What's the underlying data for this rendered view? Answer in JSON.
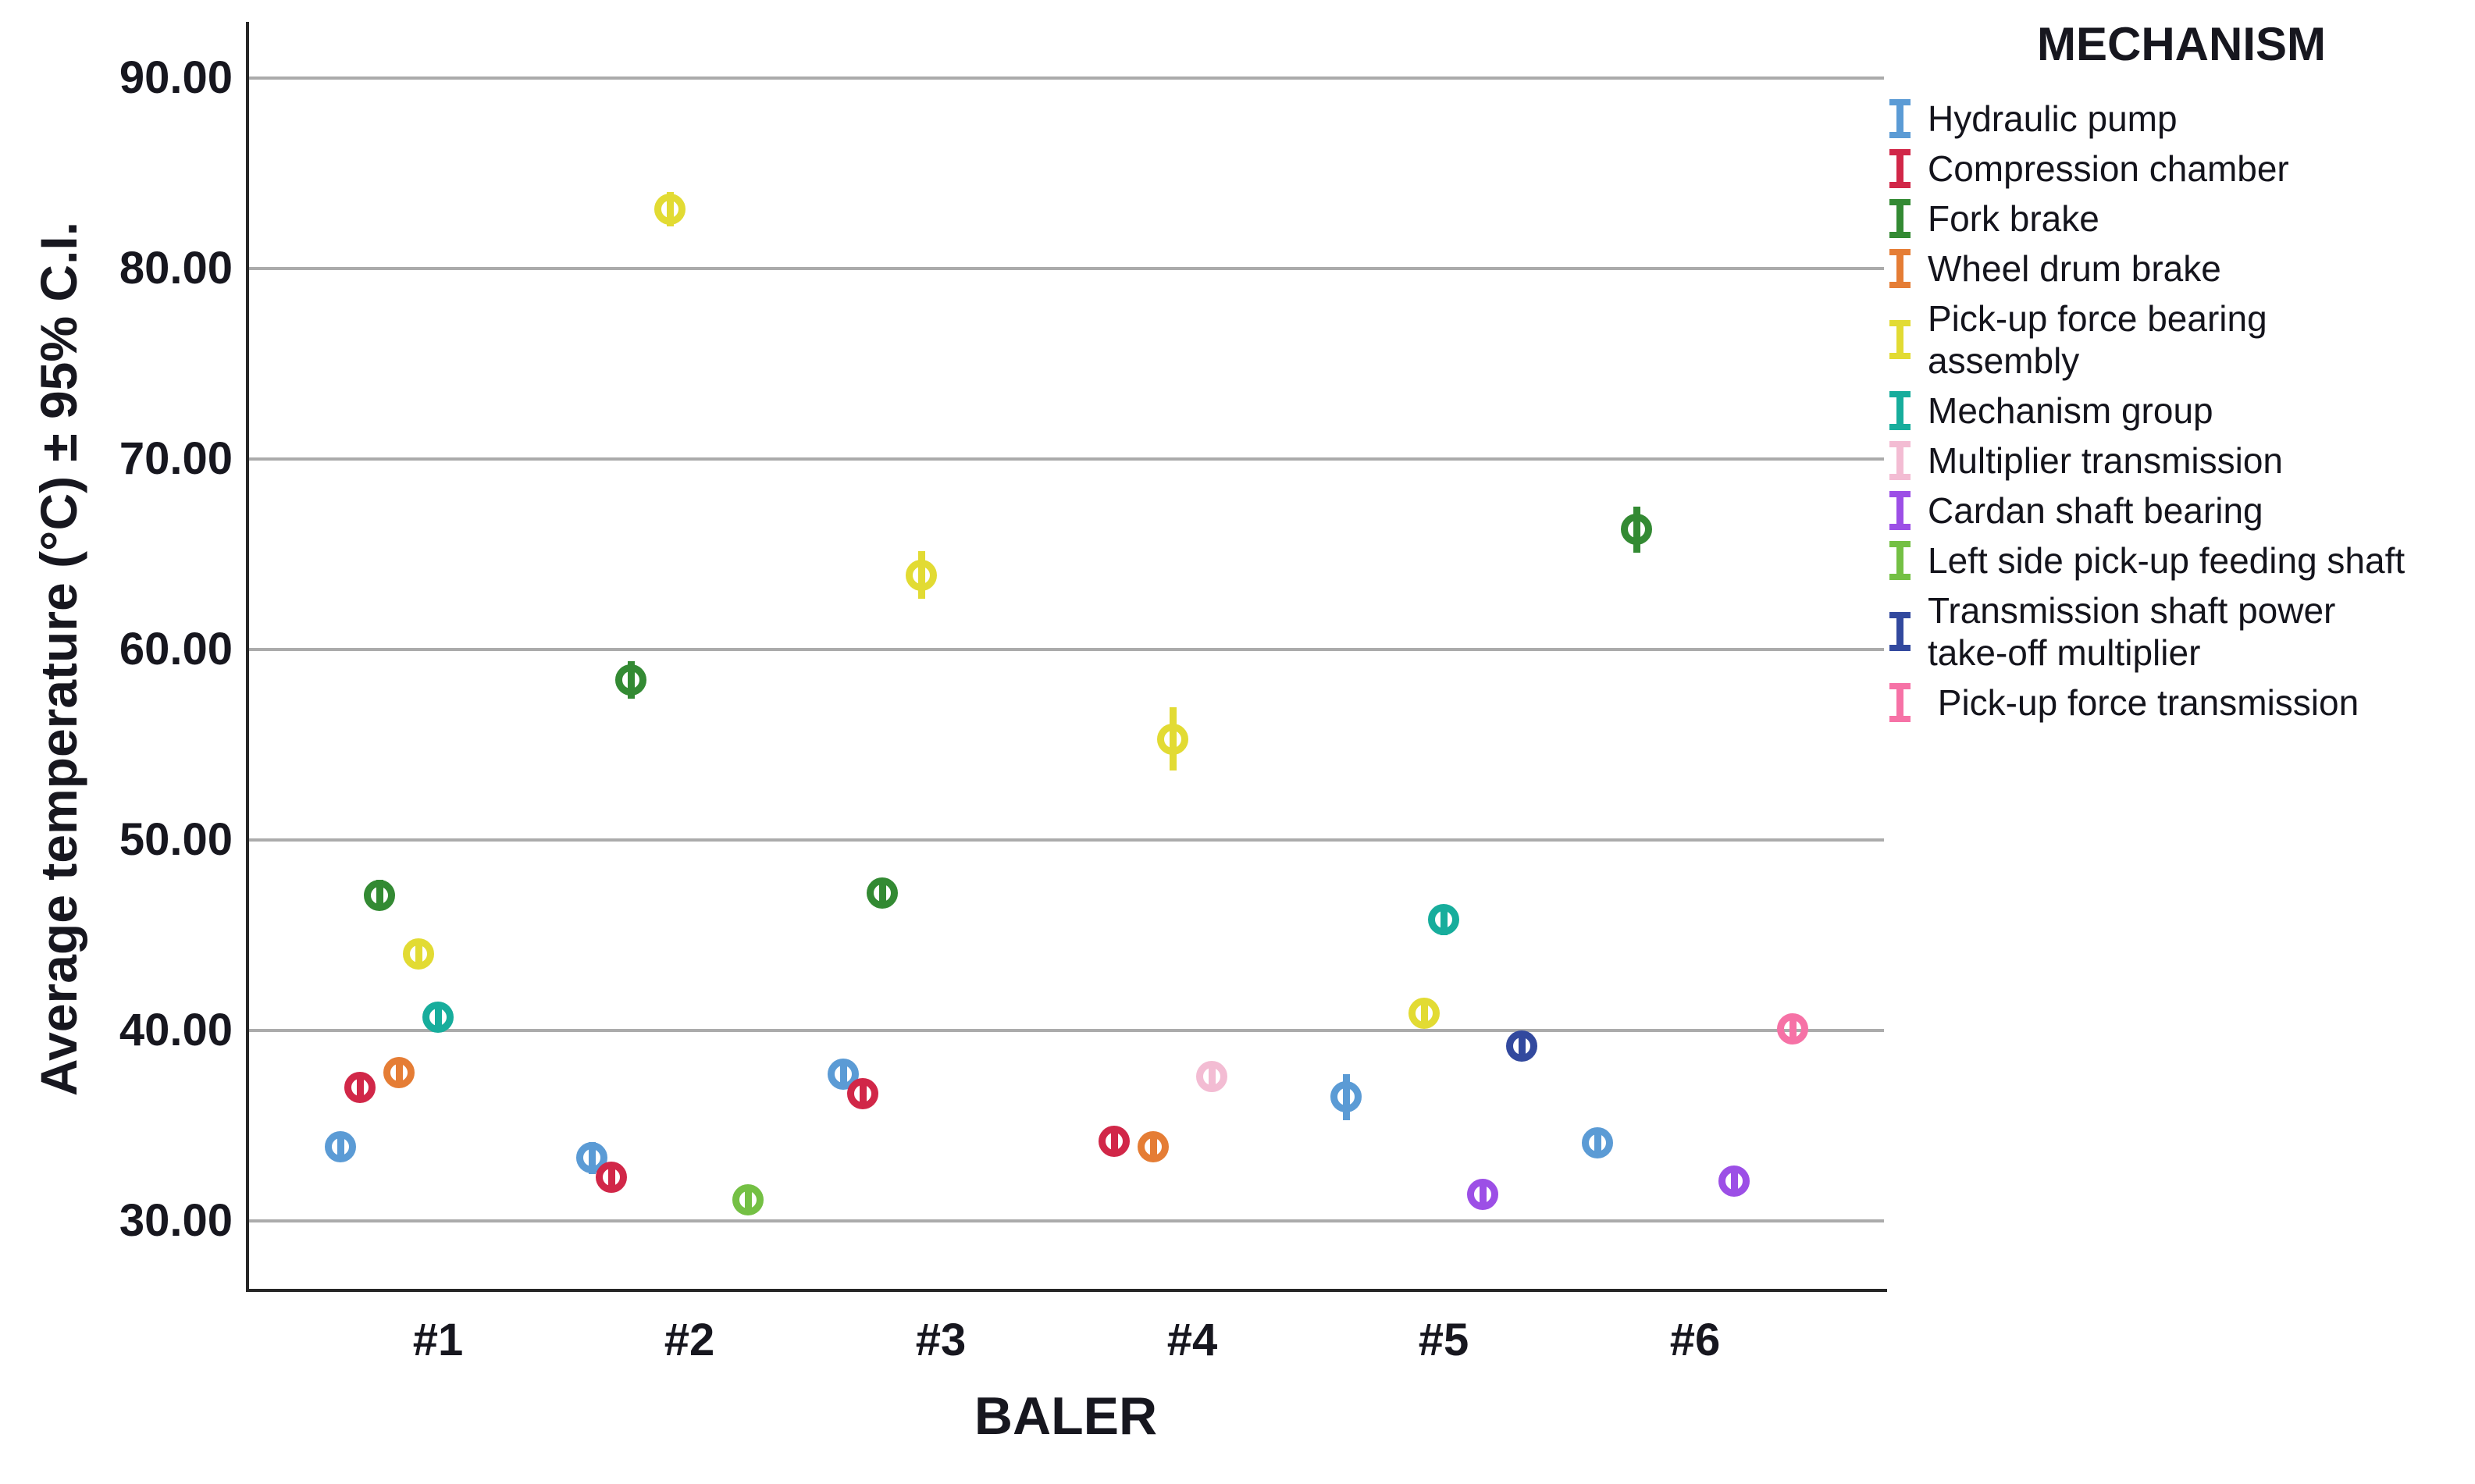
{
  "chart_data": {
    "type": "scatter",
    "subtype": "clustered-errorbar-means",
    "ylabel": "Average temperature (°C) ± 95% C.I.",
    "xlabel": "BALER",
    "legend_title": "MECHANISM",
    "categories": [
      "#1",
      "#2",
      "#3",
      "#4",
      "#5",
      "#6"
    ],
    "y_ticks": [
      "90.00",
      "80.00",
      "70.00",
      "60.00",
      "50.00",
      "40.00",
      "30.00"
    ],
    "y_tick_values": [
      90,
      80,
      70,
      60,
      50,
      40,
      30
    ],
    "ylim": [
      26.4,
      93.3
    ],
    "grid": "horizontal-only",
    "gridline_color": "#ababab",
    "legend_position": "right",
    "mechanisms": [
      {
        "name": "Hydraulic pump",
        "color": "#5b9bd5"
      },
      {
        "name": "Compression chamber",
        "color": "#d12748"
      },
      {
        "name": "Fork brake",
        "color": "#338a33"
      },
      {
        "name": "Wheel drum brake",
        "color": "#e57d35"
      },
      {
        "name": "Pick-up force bearing assembly",
        "color": "#e2db33"
      },
      {
        "name": "Mechanism group",
        "color": "#17ad9c"
      },
      {
        "name": "Multiplier transmission",
        "color": "#f3bcd3"
      },
      {
        "name": "Cardan shaft bearing",
        "color": "#9c4fe6"
      },
      {
        "name": "Left side pick-up feeding shaft",
        "color": "#74c044"
      },
      {
        "name": "Transmission shaft power take-off multiplier",
        "color": "#32499e"
      },
      {
        "name": " Pick-up force transmission",
        "color": "#f672a6"
      }
    ],
    "points": [
      {
        "baler": 1,
        "mechanism": 0,
        "value": 33.9,
        "ci": 0.55
      },
      {
        "baler": 1,
        "mechanism": 1,
        "value": 37.0,
        "ci": 0.55
      },
      {
        "baler": 1,
        "mechanism": 2,
        "value": 47.1,
        "ci": 0.8
      },
      {
        "baler": 1,
        "mechanism": 3,
        "value": 37.8,
        "ci": 0.6
      },
      {
        "baler": 1,
        "mechanism": 4,
        "value": 44.0,
        "ci": 0.7
      },
      {
        "baler": 1,
        "mechanism": 5,
        "value": 40.7,
        "ci": 0.7
      },
      {
        "baler": 2,
        "mechanism": 0,
        "value": 33.3,
        "ci": 0.85
      },
      {
        "baler": 2,
        "mechanism": 1,
        "value": 32.3,
        "ci": 0.6
      },
      {
        "baler": 2,
        "mechanism": 2,
        "value": 58.4,
        "ci": 1.0
      },
      {
        "baler": 2,
        "mechanism": 4,
        "value": 83.1,
        "ci": 0.9
      },
      {
        "baler": 2,
        "mechanism": 8,
        "value": 31.1,
        "ci": 0.6
      },
      {
        "baler": 3,
        "mechanism": 0,
        "value": 37.7,
        "ci": 0.75
      },
      {
        "baler": 3,
        "mechanism": 1,
        "value": 36.7,
        "ci": 0.6
      },
      {
        "baler": 3,
        "mechanism": 2,
        "value": 47.2,
        "ci": 0.75
      },
      {
        "baler": 3,
        "mechanism": 4,
        "value": 63.9,
        "ci": 1.25
      },
      {
        "baler": 4,
        "mechanism": 1,
        "value": 34.2,
        "ci": 0.5
      },
      {
        "baler": 4,
        "mechanism": 3,
        "value": 33.9,
        "ci": 0.5
      },
      {
        "baler": 4,
        "mechanism": 4,
        "value": 55.3,
        "ci": 1.65
      },
      {
        "baler": 4,
        "mechanism": 6,
        "value": 37.6,
        "ci": 0.5
      },
      {
        "baler": 5,
        "mechanism": 0,
        "value": 36.5,
        "ci": 1.2
      },
      {
        "baler": 5,
        "mechanism": 4,
        "value": 40.9,
        "ci": 0.75
      },
      {
        "baler": 5,
        "mechanism": 5,
        "value": 45.8,
        "ci": 0.8
      },
      {
        "baler": 5,
        "mechanism": 7,
        "value": 31.4,
        "ci": 0.5
      },
      {
        "baler": 5,
        "mechanism": 9,
        "value": 39.2,
        "ci": 0.7
      },
      {
        "baler": 6,
        "mechanism": 0,
        "value": 34.1,
        "ci": 0.6
      },
      {
        "baler": 6,
        "mechanism": 2,
        "value": 66.3,
        "ci": 1.2
      },
      {
        "baler": 6,
        "mechanism": 7,
        "value": 32.1,
        "ci": 0.5
      },
      {
        "baler": 6,
        "mechanism": 10,
        "value": 40.1,
        "ci": 0.6
      }
    ]
  }
}
